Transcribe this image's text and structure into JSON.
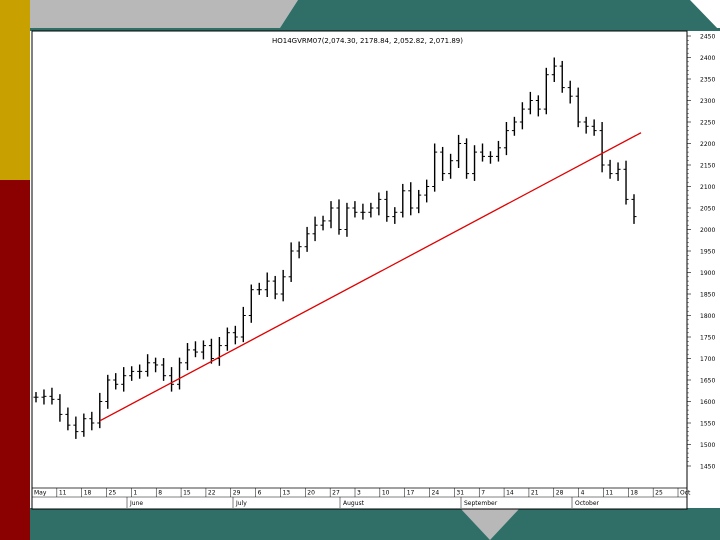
{
  "colors": {
    "gold": "#c8a000",
    "red_bar": "#8b0000",
    "teal": "#2f6f68",
    "grey": "#b8b8b8",
    "trend": "#e00000"
  },
  "chart_data": {
    "type": "bar",
    "title": "HO14GVRM07(2,074.30, 2178.84, 2,052.82, 2,071.89)",
    "ylim": [
      1450,
      2450
    ],
    "yticks": [
      1450,
      1500,
      1550,
      1600,
      1650,
      1700,
      1750,
      1800,
      1850,
      1900,
      1950,
      2000,
      2050,
      2100,
      2150,
      2200,
      2250,
      2300,
      2350,
      2400,
      2450
    ],
    "xticks": [
      "May",
      "11",
      "18",
      "25",
      "1",
      "8",
      "15",
      "22",
      "29",
      "6",
      "13",
      "20",
      "27",
      "3",
      "10",
      "17",
      "24",
      "31",
      "7",
      "14",
      "21",
      "28",
      "4",
      "11",
      "18",
      "25",
      "Oct"
    ],
    "months": [
      "June",
      "July",
      "August",
      "September",
      "October"
    ],
    "grid": false,
    "ohlc_close": [
      1610,
      1612,
      1605,
      1570,
      1545,
      1530,
      1560,
      1550,
      1600,
      1650,
      1640,
      1660,
      1670,
      1670,
      1690,
      1685,
      1660,
      1640,
      1690,
      1720,
      1715,
      1730,
      1700,
      1730,
      1760,
      1750,
      1800,
      1860,
      1860,
      1880,
      1850,
      1890,
      1950,
      1960,
      1990,
      2010,
      2020,
      2050,
      2000,
      2050,
      2040,
      2040,
      2050,
      2070,
      2030,
      2040,
      2090,
      2050,
      2080,
      2100,
      2180,
      2130,
      2160,
      2200,
      2130,
      2180,
      2170,
      2170,
      2190,
      2230,
      2250,
      2280,
      2300,
      2280,
      2360,
      2380,
      2330,
      2310,
      2250,
      2240,
      2230,
      2150,
      2130,
      2140,
      2070,
      2030
    ],
    "trendline": {
      "x": [
        10,
        150
      ],
      "y": [
        1555,
        2225
      ]
    }
  }
}
